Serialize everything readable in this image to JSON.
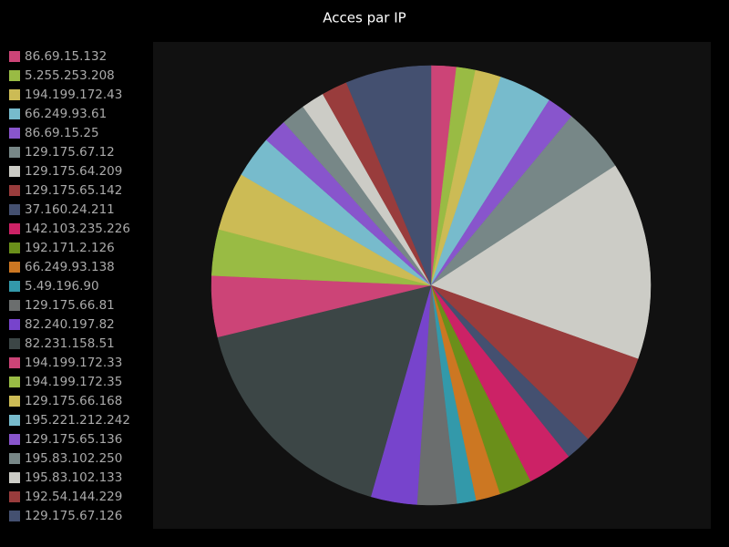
{
  "chart_data": {
    "type": "pie",
    "title": "Acces par IP",
    "categories": [
      "86.69.15.132",
      "5.255.253.208",
      "194.199.172.43",
      "66.249.93.61",
      "86.69.15.25",
      "129.175.67.12",
      "129.175.64.209",
      "129.175.65.142",
      "37.160.24.211",
      "142.103.235.226",
      "192.171.2.126",
      "66.249.93.138",
      "5.49.196.90",
      "129.175.66.81",
      "82.240.197.82",
      "82.231.158.51",
      "194.199.172.33",
      "194.199.172.35",
      "129.175.66.168",
      "195.221.212.242",
      "129.175.65.136",
      "195.83.102.250",
      "195.83.102.133",
      "192.54.144.229",
      "129.175.67.126"
    ],
    "values": [
      1.85,
      1.4,
      1.9,
      3.9,
      2.0,
      4.8,
      14.6,
      6.9,
      1.9,
      3.3,
      2.4,
      1.8,
      1.4,
      2.9,
      3.4,
      16.8,
      4.5,
      3.4,
      4.3,
      3.1,
      1.8,
      1.8,
      1.7,
      1.9,
      6.3
    ],
    "colors": [
      "#cc4477",
      "#99bb44",
      "#ccbb55",
      "#77bbcc",
      "#8855cc",
      "#778787",
      "#ccccc6",
      "#993c3c",
      "#445070",
      "#cc2266",
      "#6a8f1a",
      "#cc7722",
      "#3399aa",
      "#6b6e6e",
      "#7744cc",
      "#3c4646",
      "#cc4477",
      "#99bb44",
      "#ccbb55",
      "#77bbcc",
      "#8855cc",
      "#778787",
      "#ccccc6",
      "#993c3c",
      "#445070"
    ]
  }
}
